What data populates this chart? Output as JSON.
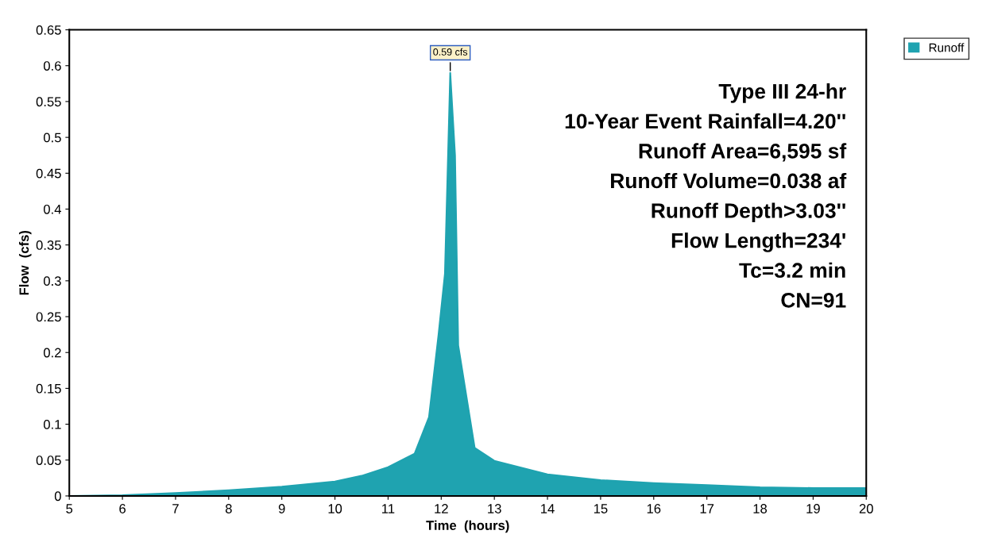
{
  "chart_data": {
    "type": "area",
    "xlabel": "Time  (hours)",
    "ylabel": "Flow  (cfs)",
    "series": [
      {
        "name": "Runoff",
        "color": "#1fa3b0",
        "x": [
          5,
          6,
          7,
          8,
          9,
          10,
          10.5,
          11,
          11.5,
          11.77,
          11.95,
          12.07,
          12.17,
          12.26,
          12.32,
          12.63,
          13,
          14,
          15,
          16,
          17,
          18,
          19,
          20
        ],
        "values": [
          0,
          0.001,
          0.004,
          0.008,
          0.013,
          0.02,
          0.028,
          0.04,
          0.059,
          0.11,
          0.225,
          0.31,
          0.59,
          0.475,
          0.21,
          0.067,
          0.049,
          0.03,
          0.022,
          0.018,
          0.015,
          0.012,
          0.011,
          0.011
        ]
      }
    ],
    "annotations": [
      {
        "text": "0.59 cfs",
        "x": 12.17,
        "y": 0.59
      },
      "Type III 24-hr",
      "10-Year Event Rainfall=4.20''",
      "Runoff Area=6,595 sf",
      "Runoff Volume=0.038 af",
      "Runoff Depth>3.03''",
      "Flow Length=234'",
      "Tc=3.2 min",
      "CN=91"
    ],
    "xlim": [
      5,
      20
    ],
    "xticks": [
      5,
      6,
      7,
      8,
      9,
      10,
      11,
      12,
      13,
      14,
      15,
      16,
      17,
      18,
      19,
      20
    ],
    "ylim": [
      0,
      0.65
    ],
    "yticks": [
      0,
      0.05,
      0.1,
      0.15,
      0.2,
      0.25,
      0.3,
      0.35,
      0.4,
      0.45,
      0.5,
      0.55,
      0.6,
      0.65
    ],
    "grid": false,
    "legend": "top right"
  }
}
